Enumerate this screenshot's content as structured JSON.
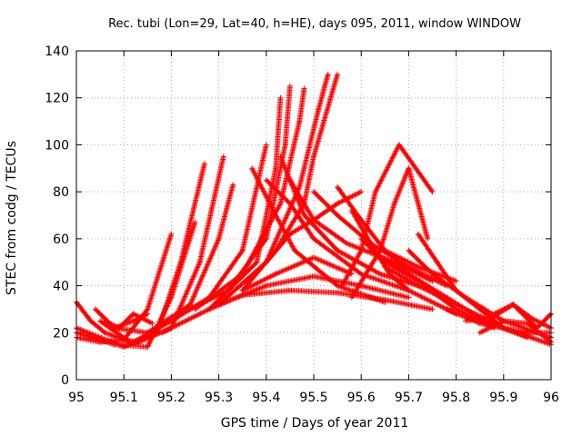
{
  "chart_data": {
    "type": "scatter",
    "title": "Rec. tubi (Lon=29, Lat=40, h=HE), days 095, 2011, window WINDOW",
    "xlabel": "GPS time / Days of year 2011",
    "ylabel": "STEC from codg / TECUs",
    "xlim": [
      95,
      96
    ],
    "ylim": [
      0,
      140
    ],
    "x_ticks": [
      "95",
      "95.1",
      "95.2",
      "95.3",
      "95.4",
      "95.5",
      "95.6",
      "95.7",
      "95.8",
      "95.9",
      "96"
    ],
    "y_ticks": [
      "0",
      "20",
      "40",
      "60",
      "80",
      "100",
      "120",
      "140"
    ],
    "grid": true,
    "legend": "none",
    "marker": "plus",
    "series_color": "#ff0000",
    "grid_color": "#b0b0b0",
    "tracks": [
      {
        "x": [
          95.0,
          95.05,
          95.1,
          95.15,
          95.2
        ],
        "y": [
          18,
          16,
          17,
          30,
          62
        ]
      },
      {
        "x": [
          95.0,
          95.08,
          95.15,
          95.2,
          95.25
        ],
        "y": [
          20,
          15,
          14,
          35,
          67
        ]
      },
      {
        "x": [
          95.0,
          95.1,
          95.17,
          95.22,
          95.27
        ],
        "y": [
          22,
          14,
          20,
          50,
          92
        ]
      },
      {
        "x": [
          95.05,
          95.12,
          95.2,
          95.26,
          95.31
        ],
        "y": [
          25,
          15,
          22,
          50,
          95
        ]
      },
      {
        "x": [
          95.08,
          95.15,
          95.24,
          95.3,
          95.33
        ],
        "y": [
          22,
          20,
          32,
          60,
          83
        ]
      },
      {
        "x": [
          95.12,
          95.2,
          95.28,
          95.35,
          95.4
        ],
        "y": [
          16,
          25,
          35,
          55,
          100
        ]
      },
      {
        "x": [
          95.18,
          95.28,
          95.38,
          95.42,
          95.43
        ],
        "y": [
          20,
          30,
          50,
          90,
          120
        ]
      },
      {
        "x": [
          95.22,
          95.32,
          95.4,
          95.44,
          95.45
        ],
        "y": [
          28,
          38,
          60,
          100,
          125
        ]
      },
      {
        "x": [
          95.25,
          95.35,
          95.43,
          95.47,
          95.48
        ],
        "y": [
          30,
          45,
          75,
          110,
          124
        ]
      },
      {
        "x": [
          95.3,
          95.4,
          95.47,
          95.51,
          95.53
        ],
        "y": [
          32,
          50,
          82,
          115,
          130
        ]
      },
      {
        "x": [
          95.35,
          95.42,
          95.48,
          95.5,
          95.55
        ],
        "y": [
          38,
          55,
          75,
          95,
          130
        ]
      },
      {
        "x": [
          95.4,
          95.45,
          95.5,
          95.55,
          95.6
        ],
        "y": [
          50,
          62,
          68,
          75,
          80
        ]
      },
      {
        "x": [
          95.37,
          95.42,
          95.46,
          95.55,
          95.65
        ],
        "y": [
          90,
          70,
          55,
          40,
          33
        ]
      },
      {
        "x": [
          95.4,
          95.45,
          95.5,
          95.6,
          95.7
        ],
        "y": [
          85,
          75,
          60,
          45,
          38
        ]
      },
      {
        "x": [
          95.43,
          95.48,
          95.55,
          95.64,
          95.72
        ],
        "y": [
          95,
          70,
          55,
          45,
          40
        ]
      },
      {
        "x": [
          95.45,
          95.5,
          95.57,
          95.67,
          95.75
        ],
        "y": [
          85,
          68,
          58,
          50,
          42
        ]
      },
      {
        "x": [
          95.5,
          95.55,
          95.62,
          95.7,
          95.78
        ],
        "y": [
          80,
          70,
          58,
          48,
          40
        ]
      },
      {
        "x": [
          95.55,
          95.6,
          95.65,
          95.72,
          95.8
        ],
        "y": [
          82,
          68,
          55,
          48,
          42
        ]
      },
      {
        "x": [
          95.56,
          95.6,
          95.63,
          95.68,
          95.75
        ],
        "y": [
          40,
          55,
          80,
          100,
          80
        ]
      },
      {
        "x": [
          95.58,
          95.64,
          95.67,
          95.7,
          95.74
        ],
        "y": [
          35,
          55,
          75,
          90,
          60
        ]
      },
      {
        "x": [
          95.58,
          95.62,
          95.66,
          95.7,
          95.8
        ],
        "y": [
          72,
          58,
          45,
          38,
          28
        ]
      },
      {
        "x": [
          95.6,
          95.65,
          95.72,
          95.8,
          95.88
        ],
        "y": [
          60,
          50,
          42,
          30,
          22
        ]
      },
      {
        "x": [
          95.62,
          95.7,
          95.78,
          95.86,
          95.95
        ],
        "y": [
          55,
          45,
          35,
          25,
          18
        ]
      },
      {
        "x": [
          95.65,
          95.72,
          95.8,
          95.9,
          96.0
        ],
        "y": [
          48,
          40,
          32,
          22,
          15
        ]
      },
      {
        "x": [
          95.7,
          95.75,
          95.82,
          95.9,
          96.0
        ],
        "y": [
          55,
          45,
          35,
          25,
          18
        ]
      },
      {
        "x": [
          95.72,
          95.76,
          95.8,
          95.85,
          95.9
        ],
        "y": [
          62,
          50,
          38,
          30,
          22
        ]
      },
      {
        "x": [
          95.78,
          95.85,
          95.9,
          95.95,
          96.0
        ],
        "y": [
          30,
          24,
          22,
          20,
          20
        ]
      },
      {
        "x": [
          95.82,
          95.88,
          95.92,
          95.97,
          96.0
        ],
        "y": [
          25,
          27,
          32,
          22,
          28
        ]
      },
      {
        "x": [
          95.85,
          95.9,
          95.95,
          96.0
        ],
        "y": [
          20,
          25,
          24,
          16
        ]
      },
      {
        "x": [
          95.88,
          95.92,
          95.96,
          96.0
        ],
        "y": [
          28,
          32,
          26,
          22
        ]
      },
      {
        "x": [
          95.28,
          95.35,
          95.45,
          95.55,
          95.65,
          95.75
        ],
        "y": [
          30,
          36,
          38,
          37,
          34,
          30
        ]
      },
      {
        "x": [
          95.3,
          95.4,
          95.5,
          95.6,
          95.7
        ],
        "y": [
          32,
          40,
          44,
          40,
          35
        ]
      },
      {
        "x": [
          95.35,
          95.42,
          95.5,
          95.58
        ],
        "y": [
          38,
          45,
          52,
          45
        ]
      },
      {
        "x": [
          95.0,
          95.03,
          95.06,
          95.1,
          95.13
        ],
        "y": [
          33,
          25,
          20,
          17,
          16
        ]
      },
      {
        "x": [
          95.04,
          95.08,
          95.12,
          95.15
        ],
        "y": [
          30,
          22,
          25,
          28
        ]
      },
      {
        "x": [
          95.06,
          95.09,
          95.12,
          95.16
        ],
        "y": [
          25,
          22,
          28,
          24
        ]
      }
    ]
  }
}
